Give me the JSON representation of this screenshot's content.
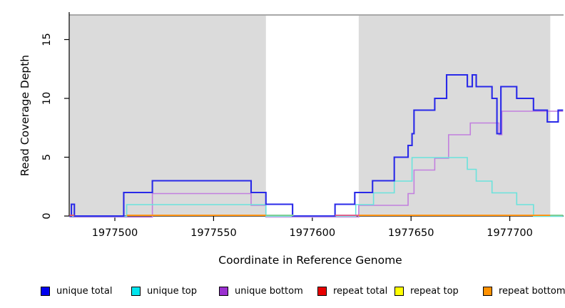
{
  "figure": {
    "xlabel": "Coordinate in Reference Genome",
    "ylabel": "Read Coverage Depth"
  },
  "axes": {
    "x_ticks": [
      1977500,
      1977550,
      1977600,
      1977650,
      1977700
    ],
    "y_ticks": [
      0,
      5,
      10,
      15
    ],
    "x_range": [
      1977477,
      1977727
    ],
    "y_range": [
      0,
      17
    ]
  },
  "legend": {
    "items": [
      {
        "label": "unique total",
        "color": "#0000EE"
      },
      {
        "label": "unique top",
        "color": "#00E5EE"
      },
      {
        "label": "unique bottom",
        "color": "#9B30D0"
      },
      {
        "label": "repeat total",
        "color": "#E80000"
      },
      {
        "label": "repeat top",
        "color": "#FFFF00"
      },
      {
        "label": "repeat bottom",
        "color": "#FF9100"
      }
    ]
  },
  "chart_data": {
    "type": "line",
    "title": "",
    "xlabel": "Coordinate in Reference Genome",
    "ylabel": "Read Coverage Depth",
    "xlim": [
      1977477,
      1977727
    ],
    "ylim": [
      0,
      17
    ],
    "grid": false,
    "legend_position": "bottom",
    "shaded_repeat_regions": [
      {
        "start": 1977477,
        "end": 1977576.5
      },
      {
        "start": 1977623.5,
        "end": 1977720.5
      }
    ],
    "series": [
      {
        "name": "unique total",
        "line_color": "#2929E8",
        "steps": [
          [
            1977477,
            0
          ],
          [
            1977478,
            1
          ],
          [
            1977479.5,
            0
          ],
          [
            1977504.5,
            2
          ],
          [
            1977519,
            3
          ],
          [
            1977569,
            2
          ],
          [
            1977576.5,
            1
          ],
          [
            1977590,
            0
          ],
          [
            1977611.5,
            1
          ],
          [
            1977621.5,
            2
          ],
          [
            1977630.5,
            3
          ],
          [
            1977641.5,
            5
          ],
          [
            1977648.5,
            6
          ],
          [
            1977650.5,
            7
          ],
          [
            1977651.5,
            9
          ],
          [
            1977662,
            10
          ],
          [
            1977668,
            12
          ],
          [
            1977678.5,
            11
          ],
          [
            1977681,
            12
          ],
          [
            1977683,
            11
          ],
          [
            1977691,
            10
          ],
          [
            1977693.5,
            7
          ],
          [
            1977695.5,
            11
          ],
          [
            1977703.5,
            10
          ],
          [
            1977712,
            9
          ],
          [
            1977719,
            8
          ],
          [
            1977724.5,
            9
          ]
        ],
        "end": 1977727
      },
      {
        "name": "unique top",
        "line_color": "#6AE3DC",
        "steps": [
          [
            1977477,
            0
          ],
          [
            1977506,
            1
          ],
          [
            1977576.5,
            0
          ],
          [
            1977622,
            1
          ],
          [
            1977631,
            2
          ],
          [
            1977641.5,
            3
          ],
          [
            1977650.5,
            5
          ],
          [
            1977678.5,
            4
          ],
          [
            1977683,
            3
          ],
          [
            1977691,
            2
          ],
          [
            1977703.5,
            1
          ],
          [
            1977712,
            0
          ]
        ],
        "end": 1977727
      },
      {
        "name": "unique bottom",
        "line_color": "#C27FDE",
        "steps": [
          [
            1977477,
            0
          ],
          [
            1977519,
            2
          ],
          [
            1977569,
            1
          ],
          [
            1977576.5,
            0
          ],
          [
            1977623.5,
            1
          ],
          [
            1977648.5,
            2
          ],
          [
            1977651.5,
            4
          ],
          [
            1977662,
            5
          ],
          [
            1977669,
            7
          ],
          [
            1977680,
            8
          ],
          [
            1977694.5,
            7
          ],
          [
            1977696,
            9
          ]
        ],
        "end": 1977727
      },
      {
        "name": "repeat total",
        "line_color": "#E26070",
        "steps": [
          [
            1977477,
            0
          ]
        ],
        "end": 1977727
      },
      {
        "name": "repeat top",
        "line_color": "#FFFF00",
        "steps": [
          [
            1977477,
            0
          ]
        ],
        "end": 1977727
      },
      {
        "name": "repeat bottom",
        "line_color": "#FF9517",
        "steps": [
          [
            1977506,
            0
          ]
        ],
        "end": 1977720.5
      }
    ]
  },
  "baseline_overlays": [
    {
      "name": "repeat-total-sliver",
      "color": "#E26070",
      "start": 1977477,
      "end": 1977479.5,
      "dy": 0
    },
    {
      "name": "repeat-bottom-left",
      "color": "#FF9517",
      "start": 1977506,
      "end": 1977576.5,
      "dy": 0
    },
    {
      "name": "gap-green-left",
      "color": "#7FCF96",
      "start": 1977576.5,
      "end": 1977590.5,
      "dy": 0
    },
    {
      "name": "gap-pink",
      "color": "#E0608C",
      "start": 1977611.5,
      "end": 1977623.5,
      "dy": 0
    },
    {
      "name": "repeat-bottom-right",
      "color": "#FF9517",
      "start": 1977623.5,
      "end": 1977720.5,
      "dy": 0
    },
    {
      "name": "edge-green-right",
      "color": "#7FCF96",
      "start": 1977720.5,
      "end": 1977727,
      "dy": 0
    },
    {
      "name": "gap-lavender-subline",
      "color": "#C9A9E6",
      "start": 1977576.5,
      "end": 1977623.5,
      "dy": 2.5
    }
  ]
}
